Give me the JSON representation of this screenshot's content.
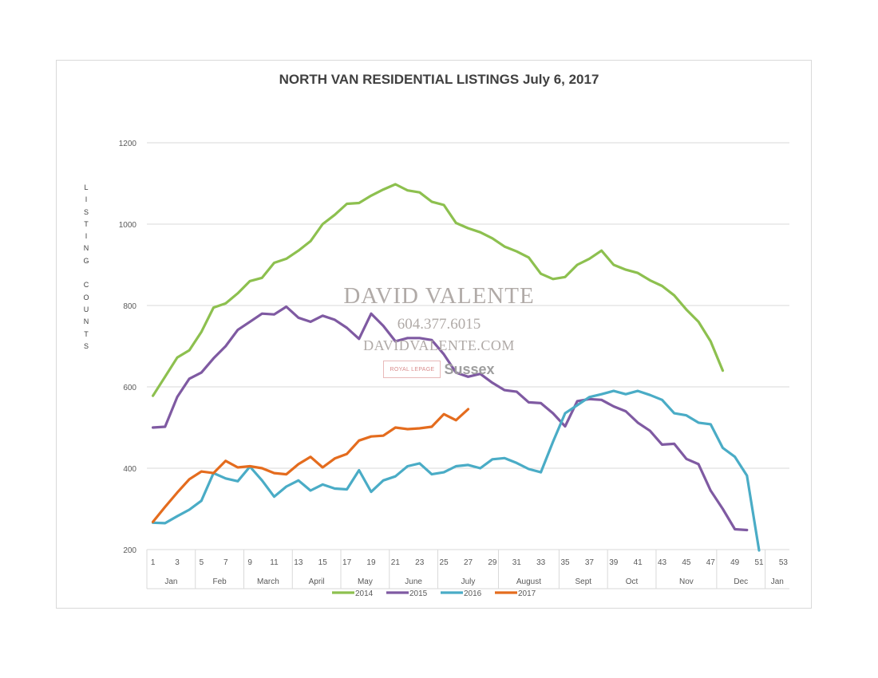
{
  "chart_data": {
    "type": "line",
    "title": "NORTH VAN RESIDENTIAL LISTINGS July 6, 2017",
    "ylabel": "LISTING COUNTS",
    "xlabel": "",
    "ylim": [
      200,
      1200
    ],
    "xlim": [
      1,
      53
    ],
    "y_ticks": [
      "200",
      "400",
      "600",
      "800",
      "1000",
      "1200"
    ],
    "x_ticks": [
      "1",
      "3",
      "5",
      "7",
      "9",
      "11",
      "13",
      "15",
      "17",
      "19",
      "21",
      "23",
      "25",
      "27",
      "29",
      "31",
      "33",
      "35",
      "37",
      "39",
      "41",
      "43",
      "45",
      "47",
      "49",
      "51",
      "53"
    ],
    "months": [
      {
        "label": "Jan",
        "start": 0,
        "end": 4
      },
      {
        "label": "Feb",
        "start": 4,
        "end": 8
      },
      {
        "label": "March",
        "start": 8,
        "end": 12
      },
      {
        "label": "April",
        "start": 12,
        "end": 16
      },
      {
        "label": "May",
        "start": 16,
        "end": 20
      },
      {
        "label": "June",
        "start": 20,
        "end": 24
      },
      {
        "label": "July",
        "start": 24,
        "end": 29
      },
      {
        "label": "August",
        "start": 29,
        "end": 34
      },
      {
        "label": "Sept",
        "start": 34,
        "end": 38
      },
      {
        "label": "Oct",
        "start": 38,
        "end": 42
      },
      {
        "label": "Nov",
        "start": 42,
        "end": 47
      },
      {
        "label": "Dec",
        "start": 47,
        "end": 51
      },
      {
        "label": "Jan",
        "start": 51,
        "end": 53
      }
    ],
    "grid": true,
    "legend_position": "bottom",
    "series": [
      {
        "name": "2014",
        "color": "#8dc04f",
        "x_start": 1,
        "values": [
          578,
          625,
          672,
          690,
          735,
          795,
          805,
          830,
          860,
          868,
          905,
          915,
          935,
          958,
          1000,
          1023,
          1050,
          1052,
          1070,
          1085,
          1098,
          1083,
          1078,
          1055,
          1047,
          1003,
          990,
          980,
          965,
          945,
          933,
          918,
          878,
          865,
          870,
          900,
          915,
          935,
          900,
          888,
          880,
          862,
          848,
          825,
          790,
          760,
          712,
          640
        ]
      },
      {
        "name": "2015",
        "color": "#7f5aa2",
        "x_start": 1,
        "values": [
          500,
          502,
          575,
          620,
          635,
          670,
          700,
          740,
          760,
          780,
          778,
          797,
          770,
          760,
          775,
          765,
          745,
          718,
          780,
          750,
          712,
          720,
          720,
          715,
          680,
          635,
          625,
          632,
          610,
          592,
          588,
          562,
          560,
          535,
          503,
          565,
          570,
          568,
          552,
          540,
          512,
          492,
          458,
          460,
          423,
          410,
          345,
          300,
          250,
          248
        ]
      },
      {
        "name": "2016",
        "color": "#4aacc6",
        "x_start": 1,
        "values": [
          266,
          265,
          282,
          298,
          320,
          388,
          375,
          368,
          404,
          370,
          330,
          355,
          370,
          345,
          360,
          350,
          348,
          395,
          342,
          370,
          380,
          405,
          412,
          385,
          390,
          405,
          408,
          400,
          422,
          425,
          413,
          398,
          390,
          465,
          535,
          555,
          575,
          582,
          590,
          582,
          590,
          580,
          568,
          535,
          530,
          512,
          508,
          450,
          428,
          382,
          198
        ]
      },
      {
        "name": "2017",
        "color": "#e46c1e",
        "x_start": 1,
        "values": [
          268,
          305,
          340,
          373,
          392,
          388,
          418,
          402,
          405,
          400,
          388,
          385,
          410,
          428,
          402,
          424,
          435,
          468,
          478,
          480,
          500,
          496,
          498,
          502,
          533,
          518,
          545
        ]
      }
    ]
  },
  "watermark": {
    "name": "DAVID VALENTE",
    "phone": "604.377.6015",
    "site": "DAVIDVALENTE.COM",
    "logo": "ROYAL LEPAGE",
    "brand": "Sussex"
  }
}
